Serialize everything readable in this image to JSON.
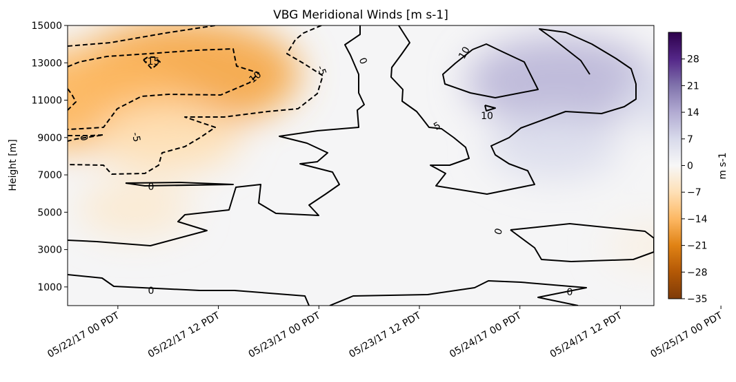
{
  "chart_data": {
    "type": "heatmap",
    "title": "VBG Meridional Winds [m s-1]",
    "ylabel": "Height [m]",
    "xlabel": "",
    "ylim": [
      0,
      15000
    ],
    "y_ticks": [
      1000,
      3000,
      5000,
      7000,
      9000,
      11000,
      13000,
      15000
    ],
    "y_tick_labels": [
      "1000",
      "3000",
      "5000",
      "7000",
      "9000",
      "11000",
      "13000",
      "15000"
    ],
    "x_domain_hours": [
      -6,
      64
    ],
    "x_ticks": [
      {
        "hours": 0,
        "label": "05/22/17 00 PDT"
      },
      {
        "hours": 12,
        "label": "05/22/17 12 PDT"
      },
      {
        "hours": 24,
        "label": "05/23/17 00 PDT"
      },
      {
        "hours": 36,
        "label": "05/23/17 12 PDT"
      },
      {
        "hours": 48,
        "label": "05/24/17 00 PDT"
      },
      {
        "hours": 60,
        "label": "05/24/17 12 PDT"
      },
      {
        "hours": 72,
        "label": "05/25/17 00 PDT"
      }
    ],
    "colorbar": {
      "label": "m s-1",
      "range": [
        -35,
        35
      ],
      "ticks": [
        -35,
        -28,
        -21,
        -14,
        -7,
        0,
        7,
        14,
        21,
        28
      ],
      "colormap": "PuOr",
      "colors": [
        "#7f3b08",
        "#b35806",
        "#e08214",
        "#fdb863",
        "#fee0b6",
        "#f7f7f7",
        "#d8daeb",
        "#b2abd2",
        "#8073ac",
        "#542788",
        "#2d004b"
      ]
    },
    "contour_levels": [
      -15,
      -10,
      -5,
      0,
      5,
      10
    ],
    "contour_labels": [
      {
        "text": "-15",
        "level": -15
      },
      {
        "text": "-10",
        "level": -10
      },
      {
        "text": "-5",
        "level": -5
      },
      {
        "text": "-5",
        "level": -5
      },
      {
        "text": "0",
        "level": 0
      },
      {
        "text": "0",
        "level": 0
      },
      {
        "text": "0",
        "level": 0
      },
      {
        "text": "0",
        "level": 0
      },
      {
        "text": "0",
        "level": 0
      },
      {
        "text": "0",
        "level": 0
      },
      {
        "text": "5",
        "level": 5
      },
      {
        "text": "10",
        "level": 10
      },
      {
        "text": "10",
        "level": 10
      }
    ],
    "wind_field": [
      {
        "name": "upper-negative-core",
        "hours": 8,
        "height_m": 12400,
        "value": -16
      },
      {
        "name": "upper-negative-west",
        "hours": -4,
        "height_m": 11000,
        "value": -14
      },
      {
        "name": "mid-negative-west",
        "hours": 6,
        "height_m": 9000,
        "value": -7
      },
      {
        "name": "lower-negative-west",
        "hours": 2,
        "height_m": 5200,
        "value": -4
      },
      {
        "name": "upper-positive-core",
        "hours": 53,
        "height_m": 12000,
        "value": 12
      },
      {
        "name": "mid-positive",
        "hours": 52,
        "height_m": 8500,
        "value": 6
      },
      {
        "name": "east-positive",
        "hours": 68,
        "height_m": 11000,
        "value": 6
      },
      {
        "name": "low-negative-east",
        "hours": 64,
        "height_m": 3200,
        "value": -2
      }
    ]
  }
}
